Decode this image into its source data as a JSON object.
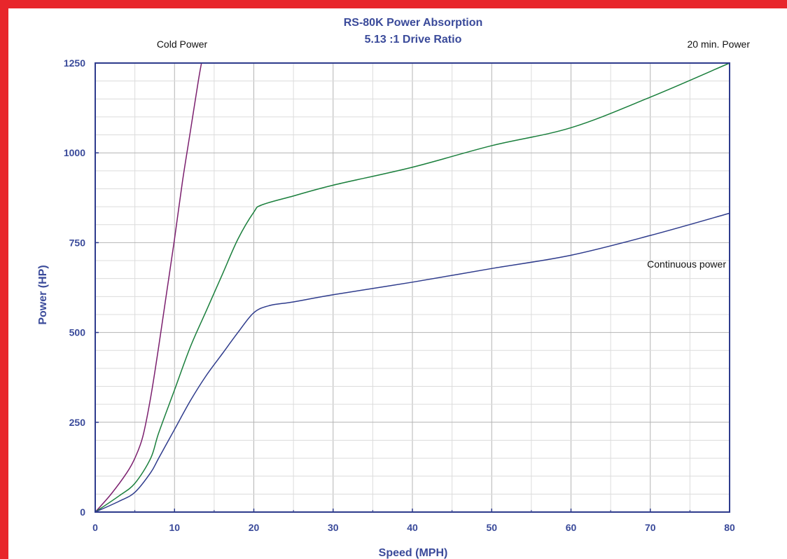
{
  "chart_data": {
    "type": "line",
    "title": "RS-80K Power Absorption",
    "subtitle": "5.13 :1 Drive Ratio",
    "xlabel": "Speed  (MPH)",
    "ylabel": "Power  (HP)",
    "xlim": [
      0,
      80
    ],
    "ylim": [
      0,
      1250
    ],
    "xticks": [
      "0",
      "10",
      "20",
      "30",
      "40",
      "50",
      "60",
      "70",
      "80"
    ],
    "yticks": [
      "0",
      "250",
      "500",
      "750",
      "1000",
      "1250"
    ],
    "grid": true,
    "series": [
      {
        "name": "Cold Power",
        "color": "#7b1f6e",
        "points": [
          [
            0,
            0
          ],
          [
            2,
            50
          ],
          [
            4,
            110
          ],
          [
            5,
            150
          ],
          [
            6,
            210
          ],
          [
            7,
            320
          ],
          [
            8,
            460
          ],
          [
            9,
            610
          ],
          [
            10,
            760
          ],
          [
            11,
            920
          ],
          [
            12,
            1060
          ],
          [
            13,
            1200
          ],
          [
            13.4,
            1250
          ]
        ]
      },
      {
        "name": "20 min. Power",
        "color": "#1a7f3c",
        "points": [
          [
            0,
            0
          ],
          [
            3,
            45
          ],
          [
            5,
            80
          ],
          [
            7,
            150
          ],
          [
            8,
            220
          ],
          [
            10,
            340
          ],
          [
            12,
            460
          ],
          [
            14,
            560
          ],
          [
            16,
            660
          ],
          [
            18,
            760
          ],
          [
            20,
            835
          ],
          [
            21,
            855
          ],
          [
            25,
            880
          ],
          [
            30,
            910
          ],
          [
            40,
            960
          ],
          [
            50,
            1020
          ],
          [
            60,
            1070
          ],
          [
            70,
            1155
          ],
          [
            80,
            1250
          ]
        ]
      },
      {
        "name": "Continuous power",
        "color": "#2e3b8c",
        "points": [
          [
            0,
            0
          ],
          [
            3,
            30
          ],
          [
            5,
            55
          ],
          [
            7,
            110
          ],
          [
            8,
            150
          ],
          [
            10,
            230
          ],
          [
            12,
            310
          ],
          [
            14,
            380
          ],
          [
            16,
            440
          ],
          [
            18,
            500
          ],
          [
            20,
            555
          ],
          [
            22,
            575
          ],
          [
            25,
            585
          ],
          [
            30,
            605
          ],
          [
            40,
            640
          ],
          [
            50,
            678
          ],
          [
            60,
            715
          ],
          [
            70,
            770
          ],
          [
            80,
            832
          ]
        ]
      }
    ],
    "annotations": {
      "cold": "Cold Power",
      "twenty": "20 min. Power",
      "continuous": "Continuous power"
    },
    "colors": {
      "border": "#e8262b",
      "text": "#3a4a9a",
      "axis": "#2e3b8c",
      "grid": "#c8c8c8"
    }
  }
}
